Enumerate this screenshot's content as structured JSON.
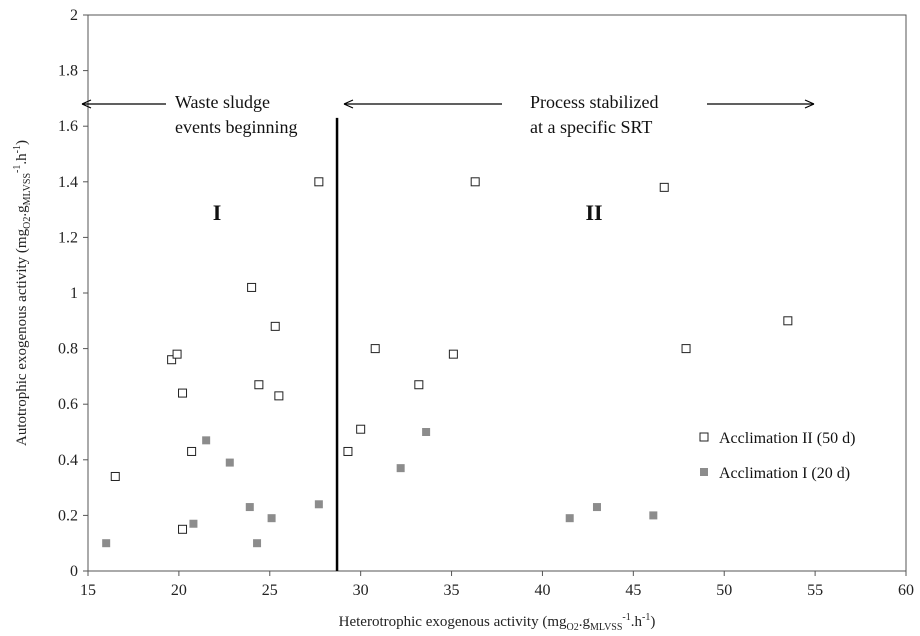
{
  "chart_data": {
    "type": "scatter",
    "xlabel": {
      "main": "Heterotrophic exogenous activity (mg",
      "sub1": "O2",
      "mid": ".g",
      "sub2": "MLVSS",
      "sup": "-1",
      "tail": ".h",
      "sup2": "-1",
      "end": ")"
    },
    "ylabel": {
      "main": "Autotrophic exogenous activity (mg",
      "sub1": "O2",
      "mid": ".g",
      "sub2": "MLVSS",
      "sup": "-1",
      "tail": ".h",
      "sup2": "-1",
      "end": ")"
    },
    "xlim": [
      15,
      60
    ],
    "ylim": [
      0,
      2
    ],
    "xticks": [
      "15",
      "20",
      "25",
      "30",
      "35",
      "40",
      "45",
      "50",
      "55",
      "60"
    ],
    "yticks": [
      "0",
      "0.2",
      "0.4",
      "0.6",
      "0.8",
      "1",
      "1.2",
      "1.4",
      "1.6",
      "1.8",
      "2"
    ],
    "grid": false,
    "legend_position": "right",
    "divider_x": 28.7,
    "series": [
      {
        "name": "Acclimation II (50 d)",
        "marker": "hollow-square",
        "color": "#222222",
        "points": [
          [
            16.5,
            0.34
          ],
          [
            19.6,
            0.76
          ],
          [
            19.9,
            0.78
          ],
          [
            20.2,
            0.64
          ],
          [
            20.2,
            0.15
          ],
          [
            20.7,
            0.43
          ],
          [
            24.0,
            1.02
          ],
          [
            24.4,
            0.67
          ],
          [
            25.3,
            0.88
          ],
          [
            25.5,
            0.63
          ],
          [
            27.7,
            1.4
          ],
          [
            29.3,
            0.43
          ],
          [
            30.0,
            0.51
          ],
          [
            30.8,
            0.8
          ],
          [
            33.2,
            0.67
          ],
          [
            35.1,
            0.78
          ],
          [
            36.3,
            1.4
          ],
          [
            46.7,
            1.38
          ],
          [
            47.9,
            0.8
          ],
          [
            53.5,
            0.9
          ]
        ]
      },
      {
        "name": "Acclimation I (20 d)",
        "marker": "filled-square",
        "color": "#8c8c8c",
        "points": [
          [
            16.0,
            0.1
          ],
          [
            20.8,
            0.17
          ],
          [
            21.5,
            0.47
          ],
          [
            22.8,
            0.39
          ],
          [
            23.9,
            0.23
          ],
          [
            24.3,
            0.1
          ],
          [
            25.1,
            0.19
          ],
          [
            27.7,
            0.24
          ],
          [
            32.2,
            0.37
          ],
          [
            33.6,
            0.5
          ],
          [
            41.5,
            0.19
          ],
          [
            43.0,
            0.23
          ],
          [
            46.1,
            0.2
          ]
        ]
      }
    ],
    "annotations": {
      "left_text_line1": "Waste sludge",
      "left_text_line2": "events beginning",
      "right_text_line1": "Process stabilized",
      "right_text_line2": "at a specific SRT",
      "region_left": "I",
      "region_right": "II"
    }
  }
}
